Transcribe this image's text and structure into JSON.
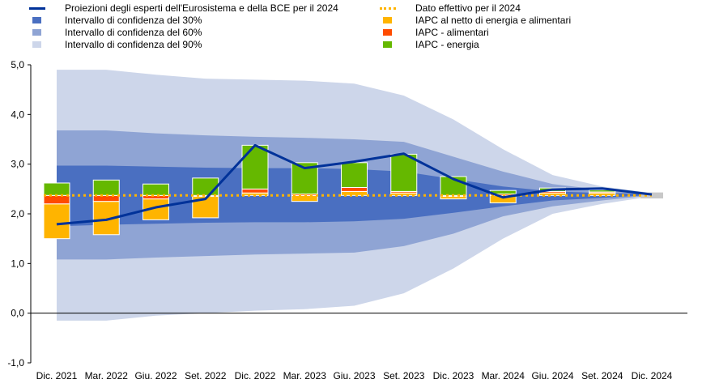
{
  "legend": {
    "left": [
      {
        "label": "Proiezioni degli esperti dell'Eurosistema e della BCE per il 2024",
        "kind": "line",
        "color": "#003299"
      },
      {
        "label": "Intervallo di confidenza del 30%",
        "kind": "box",
        "color": "#4a6fc1"
      },
      {
        "label": "Intervallo di confidenza del 60%",
        "kind": "box",
        "color": "#8fa4d4"
      },
      {
        "label": "Intervallo di confidenza del 90%",
        "kind": "box",
        "color": "#cdd6ea"
      }
    ],
    "right": [
      {
        "label": "Dato effettivo per il 2024",
        "kind": "dotted",
        "color": "#ffb400"
      },
      {
        "label": "IAPC al netto di energia e alimentari",
        "kind": "box",
        "color": "#ffb400"
      },
      {
        "label": "IAPC - alimentari",
        "kind": "box",
        "color": "#ff4b00"
      },
      {
        "label": "IAPC - energia",
        "kind": "box",
        "color": "#65b800"
      }
    ]
  },
  "chart_data": {
    "type": "bar",
    "categories": [
      "Dic. 2021",
      "Mar. 2022",
      "Giu. 2022",
      "Set. 2022",
      "Dic. 2022",
      "Mar. 2023",
      "Giu. 2023",
      "Set. 2023",
      "Dic. 2023",
      "Mar. 2024",
      "Giu. 2024",
      "Set. 2024",
      "Dic. 2024"
    ],
    "yticks": [
      "-1,0",
      "0,0",
      "1,0",
      "2,0",
      "3,0",
      "4,0",
      "5,0"
    ],
    "ylim": [
      -1,
      5
    ],
    "actual_2024": 2.37,
    "projection": {
      "name": "Proiezioni degli esperti dell'Eurosistema e della BCE per il 2024",
      "values": [
        1.79,
        1.88,
        2.13,
        2.3,
        3.38,
        2.92,
        3.05,
        3.21,
        2.7,
        2.33,
        2.49,
        2.51,
        2.39
      ]
    },
    "ci_90": {
      "lower": [
        -0.15,
        -0.15,
        -0.05,
        0.0,
        0.05,
        0.08,
        0.15,
        0.4,
        0.9,
        1.5,
        2.0,
        2.2,
        2.35
      ],
      "upper": [
        4.9,
        4.9,
        4.8,
        4.72,
        4.7,
        4.68,
        4.62,
        4.38,
        3.9,
        3.3,
        2.78,
        2.55,
        2.42
      ]
    },
    "ci_60": {
      "lower": [
        1.08,
        1.08,
        1.12,
        1.15,
        1.18,
        1.2,
        1.22,
        1.35,
        1.6,
        1.95,
        2.15,
        2.27,
        2.37
      ],
      "upper": [
        3.68,
        3.68,
        3.62,
        3.58,
        3.55,
        3.53,
        3.5,
        3.45,
        3.15,
        2.85,
        2.6,
        2.48,
        2.4
      ]
    },
    "ci_30": {
      "lower": [
        1.75,
        1.78,
        1.8,
        1.82,
        1.83,
        1.83,
        1.85,
        1.9,
        2.02,
        2.15,
        2.27,
        2.32,
        2.38
      ],
      "upper": [
        2.97,
        2.97,
        2.95,
        2.93,
        2.92,
        2.92,
        2.9,
        2.85,
        2.7,
        2.55,
        2.45,
        2.42,
        2.4
      ]
    },
    "deviations": {
      "index": [
        0,
        1,
        2,
        3,
        4,
        5,
        6,
        7,
        8,
        9,
        10,
        11
      ],
      "core": [
        [
          1.5,
          2.2
        ],
        [
          1.58,
          2.25
        ],
        [
          1.88,
          2.3
        ],
        [
          1.92,
          2.35
        ],
        [
          2.37,
          2.42
        ],
        [
          2.25,
          2.37
        ],
        [
          2.37,
          2.45
        ],
        [
          2.37,
          2.42
        ],
        [
          2.3,
          2.35
        ],
        [
          2.22,
          2.37
        ],
        [
          2.37,
          2.42
        ],
        [
          2.37,
          2.42
        ]
      ],
      "food": [
        [
          2.2,
          2.37
        ],
        [
          2.25,
          2.37
        ],
        [
          2.3,
          2.37
        ],
        [
          2.35,
          2.37
        ],
        [
          2.42,
          2.5
        ],
        [
          2.37,
          2.4
        ],
        [
          2.45,
          2.53
        ],
        [
          2.42,
          2.45
        ],
        [
          2.35,
          2.37
        ],
        [
          2.37,
          2.4
        ],
        [
          2.42,
          2.45
        ],
        [
          2.42,
          2.44
        ]
      ],
      "energy": [
        [
          2.37,
          2.62
        ],
        [
          2.37,
          2.68
        ],
        [
          2.37,
          2.6
        ],
        [
          2.37,
          2.72
        ],
        [
          2.5,
          3.38
        ],
        [
          2.4,
          3.03
        ],
        [
          2.53,
          3.03
        ],
        [
          2.45,
          3.2
        ],
        [
          2.37,
          2.75
        ],
        [
          2.4,
          2.47
        ],
        [
          2.45,
          2.52
        ],
        [
          2.44,
          2.48
        ]
      ]
    }
  }
}
